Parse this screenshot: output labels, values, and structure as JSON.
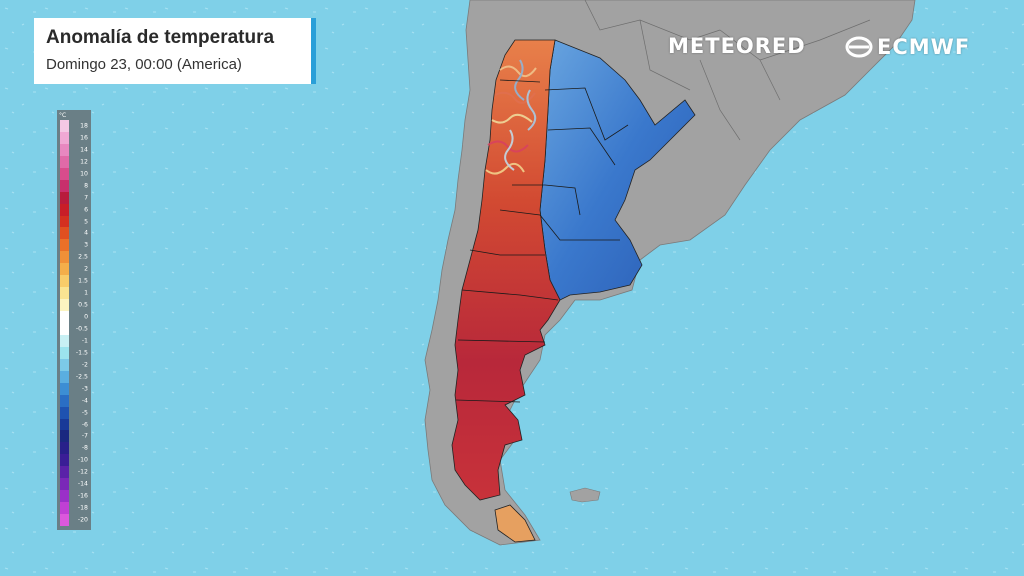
{
  "header": {
    "title": "Anomalía de temperatura",
    "subtitle": "Domingo 23, 00:00 (America)"
  },
  "brands": {
    "meteored": "METEORED",
    "ecmwf": "ECMWF"
  },
  "legend": {
    "unit": "°C",
    "labels": [
      "18",
      "16",
      "14",
      "12",
      "10",
      "8",
      "7",
      "6",
      "5",
      "4",
      "3",
      "2.5",
      "2",
      "1.5",
      "1",
      "0.5",
      "0",
      "-0.5",
      "-1",
      "-1.5",
      "-2",
      "-2.5",
      "-3",
      "-4",
      "-5",
      "-6",
      "-7",
      "-8",
      "-10",
      "-12",
      "-14",
      "-16",
      "-18",
      "-20"
    ],
    "colors": [
      "#f4c8e4",
      "#f0a8d4",
      "#e888c0",
      "#e06aa8",
      "#d84c8c",
      "#c8306c",
      "#b81c3c",
      "#c81e28",
      "#d43020",
      "#e05020",
      "#ea7028",
      "#f09038",
      "#f4ae4a",
      "#f8cc6a",
      "#fae492",
      "#fcf4c0",
      "#ffffff",
      "#ffffff",
      "#c8f0f4",
      "#9ce4ee",
      "#7ccae8",
      "#5aaee0",
      "#3c8ed4",
      "#2a6ec4",
      "#1e52b0",
      "#183a98",
      "#1a2880",
      "#28208a",
      "#3a1e96",
      "#5a22a8",
      "#7a28b8",
      "#9a30c8",
      "#c040d4",
      "#dc58dc"
    ],
    "colors_meaning": "top-to-bottom swatches matching labels"
  },
  "map": {
    "ocean_color": "#7fd0e8",
    "land_color": "#a0a0a0",
    "hot_color": "#c8322a",
    "cold_color": "#2f6cc4"
  }
}
